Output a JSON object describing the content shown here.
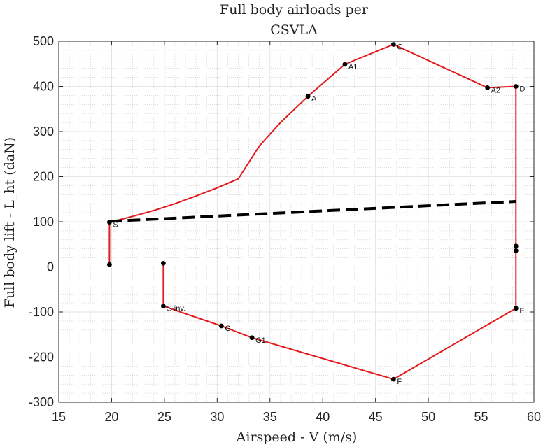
{
  "chart_data": {
    "type": "line",
    "title": [
      "Full body airloads per",
      "CSVLA"
    ],
    "xlabel": "Airspeed - V (m/s)",
    "ylabel": "Full body lift - L_ht (daN)",
    "xlim": [
      15,
      60
    ],
    "ylim": [
      -300,
      500
    ],
    "xticks": [
      15,
      20,
      25,
      30,
      35,
      40,
      45,
      50,
      55,
      60
    ],
    "yticks": [
      -300,
      -200,
      -100,
      0,
      100,
      200,
      300,
      400,
      500
    ],
    "grid": true,
    "minor_grid": true,
    "series": [
      {
        "style": "solid",
        "color": "#e31a1c",
        "points": [
          [
            19.8,
            5
          ],
          [
            19.8,
            99
          ],
          [
            20.5,
            103
          ],
          [
            22,
            112
          ],
          [
            24,
            125
          ],
          [
            26,
            140
          ],
          [
            28,
            157
          ],
          [
            30,
            175
          ],
          [
            32,
            195
          ],
          [
            34,
            268
          ],
          [
            36,
            320
          ],
          [
            38.6,
            378
          ],
          [
            42.1,
            449
          ],
          [
            46.7,
            493
          ],
          [
            55.6,
            397
          ],
          [
            58.3,
            400
          ],
          [
            58.3,
            36
          ],
          [
            58.3,
            -92
          ],
          [
            46.7,
            -249
          ],
          [
            33.3,
            -157
          ],
          [
            30.4,
            -131
          ],
          [
            24.9,
            -87
          ],
          [
            24.9,
            8
          ]
        ]
      },
      {
        "style": "dashed",
        "color": "#000000",
        "points": [
          [
            19.8,
            101
          ],
          [
            58.3,
            145
          ]
        ]
      }
    ],
    "markers": [
      {
        "label": "S",
        "x": 19.8,
        "y": 99
      },
      {
        "label": "",
        "x": 19.8,
        "y": 5
      },
      {
        "label": "A",
        "x": 38.6,
        "y": 378
      },
      {
        "label": "A1",
        "x": 42.1,
        "y": 449
      },
      {
        "label": "C",
        "x": 46.7,
        "y": 493
      },
      {
        "label": "A2",
        "x": 55.6,
        "y": 397
      },
      {
        "label": "D",
        "x": 58.3,
        "y": 400
      },
      {
        "label": "",
        "x": 58.3,
        "y": 46
      },
      {
        "label": "",
        "x": 58.3,
        "y": 36
      },
      {
        "label": "E",
        "x": 58.3,
        "y": -92
      },
      {
        "label": "F",
        "x": 46.7,
        "y": -249
      },
      {
        "label": "G1",
        "x": 33.3,
        "y": -157
      },
      {
        "label": "G",
        "x": 30.4,
        "y": -131
      },
      {
        "label": "S inv.",
        "x": 24.9,
        "y": -87
      },
      {
        "label": "",
        "x": 24.9,
        "y": 8
      }
    ]
  }
}
